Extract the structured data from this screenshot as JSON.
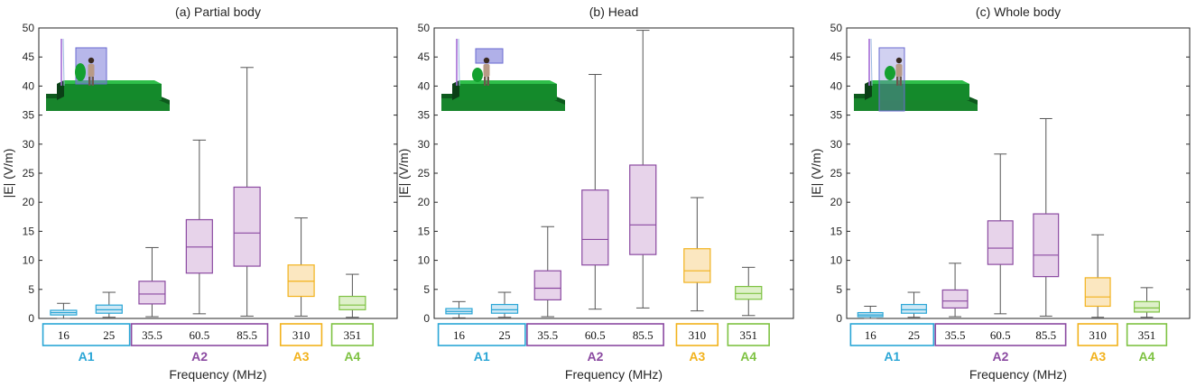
{
  "chart_data": [
    {
      "type": "box",
      "title": "(a) Partial body",
      "ylabel": "|E| (V/m)",
      "xlabel": "Frequency (MHz)",
      "ylim": [
        0,
        50
      ],
      "yticks": [
        0,
        5,
        10,
        15,
        20,
        25,
        30,
        35,
        40,
        45,
        50
      ],
      "inset": "partial-body-scene",
      "boxes": [
        {
          "freq": "16",
          "group": "A1",
          "min": 0.0,
          "q1": 0.6,
          "median": 1.0,
          "q3": 1.4,
          "max": 2.6
        },
        {
          "freq": "25",
          "group": "A1",
          "min": 0.2,
          "q1": 0.9,
          "median": 1.5,
          "q3": 2.3,
          "max": 4.5
        },
        {
          "freq": "35.5",
          "group": "A2",
          "min": 0.3,
          "q1": 2.5,
          "median": 4.2,
          "q3": 6.4,
          "max": 12.2
        },
        {
          "freq": "60.5",
          "group": "A2",
          "min": 0.8,
          "q1": 7.8,
          "median": 12.3,
          "q3": 17.0,
          "max": 30.7
        },
        {
          "freq": "85.5",
          "group": "A2",
          "min": 0.4,
          "q1": 9.0,
          "median": 14.7,
          "q3": 22.6,
          "max": 43.2
        },
        {
          "freq": "310",
          "group": "A3",
          "min": 0.4,
          "q1": 3.8,
          "median": 6.4,
          "q3": 9.2,
          "max": 17.3
        },
        {
          "freq": "351",
          "group": "A4",
          "min": 0.2,
          "q1": 1.5,
          "median": 2.3,
          "q3": 3.8,
          "max": 7.6
        }
      ]
    },
    {
      "type": "box",
      "title": "(b) Head",
      "ylabel": "|E| (V/m)",
      "xlabel": "Frequency (MHz)",
      "ylim": [
        0,
        50
      ],
      "yticks": [
        0,
        5,
        10,
        15,
        20,
        25,
        30,
        35,
        40,
        45,
        50
      ],
      "inset": "head-scene",
      "boxes": [
        {
          "freq": "16",
          "group": "A1",
          "min": 0.1,
          "q1": 0.8,
          "median": 1.2,
          "q3": 1.7,
          "max": 2.9
        },
        {
          "freq": "25",
          "group": "A1",
          "min": 0.2,
          "q1": 0.9,
          "median": 1.5,
          "q3": 2.4,
          "max": 4.5
        },
        {
          "freq": "35.5",
          "group": "A2",
          "min": 0.3,
          "q1": 3.2,
          "median": 5.2,
          "q3": 8.2,
          "max": 15.8
        },
        {
          "freq": "60.5",
          "group": "A2",
          "min": 1.6,
          "q1": 9.2,
          "median": 13.6,
          "q3": 22.1,
          "max": 42.0
        },
        {
          "freq": "85.5",
          "group": "A2",
          "min": 1.8,
          "q1": 11.0,
          "median": 16.1,
          "q3": 26.4,
          "max": 49.6
        },
        {
          "freq": "310",
          "group": "A3",
          "min": 1.3,
          "q1": 6.2,
          "median": 8.2,
          "q3": 12.0,
          "max": 20.8
        },
        {
          "freq": "351",
          "group": "A4",
          "min": 0.5,
          "q1": 3.3,
          "median": 4.3,
          "q3": 5.5,
          "max": 8.8
        }
      ]
    },
    {
      "type": "box",
      "title": "(c) Whole body",
      "ylabel": "|E| (V/m)",
      "xlabel": "Frequency (MHz)",
      "ylim": [
        0,
        50
      ],
      "yticks": [
        0,
        5,
        10,
        15,
        20,
        25,
        30,
        35,
        40,
        45,
        50
      ],
      "inset": "whole-body-scene",
      "boxes": [
        {
          "freq": "16",
          "group": "A1",
          "min": 0.0,
          "q1": 0.3,
          "median": 0.6,
          "q3": 1.0,
          "max": 2.1
        },
        {
          "freq": "25",
          "group": "A1",
          "min": 0.2,
          "q1": 0.9,
          "median": 1.5,
          "q3": 2.4,
          "max": 4.5
        },
        {
          "freq": "35.5",
          "group": "A2",
          "min": 0.3,
          "q1": 1.8,
          "median": 3.0,
          "q3": 4.9,
          "max": 9.5
        },
        {
          "freq": "60.5",
          "group": "A2",
          "min": 0.8,
          "q1": 9.3,
          "median": 12.1,
          "q3": 16.8,
          "max": 28.3
        },
        {
          "freq": "85.5",
          "group": "A2",
          "min": 0.4,
          "q1": 7.2,
          "median": 10.9,
          "q3": 18.0,
          "max": 34.4
        },
        {
          "freq": "310",
          "group": "A3",
          "min": 0.2,
          "q1": 2.1,
          "median": 3.7,
          "q3": 7.0,
          "max": 14.4
        },
        {
          "freq": "351",
          "group": "A4",
          "min": 0.2,
          "q1": 1.1,
          "median": 1.8,
          "q3": 2.9,
          "max": 5.3
        }
      ]
    }
  ],
  "groups": [
    {
      "name": "A1",
      "label": "A1",
      "color": "#2aa6d6",
      "fill": "#cfe8f5"
    },
    {
      "name": "A2",
      "label": "A2",
      "color": "#8b4aa1",
      "fill": "#e7d3ea"
    },
    {
      "name": "A3",
      "label": "A3",
      "color": "#f2b21c",
      "fill": "#fbe7c0"
    },
    {
      "name": "A4",
      "label": "A4",
      "color": "#7ec242",
      "fill": "#def0c9"
    }
  ],
  "colors": {
    "whisker": "#555555",
    "axis": "#262626",
    "text": "#262626"
  }
}
